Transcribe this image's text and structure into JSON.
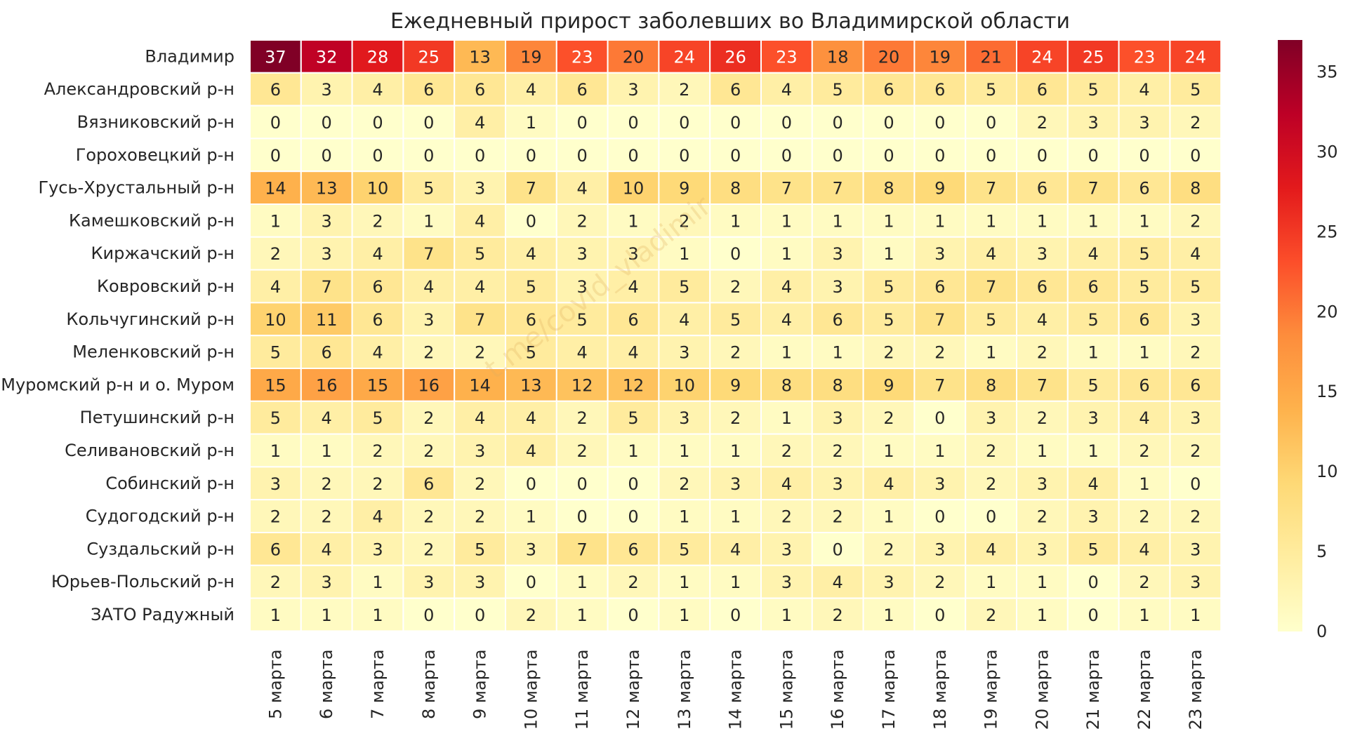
{
  "chart_data": {
    "type": "heatmap",
    "title": "Ежедневный прирост заболевших во Владимирской области",
    "rows": [
      "Владимир",
      "Александровский р-н",
      "Вязниковский р-н",
      "Гороховецкий р-н",
      "Гусь-Хрустальный р-н",
      "Камешковский р-н",
      "Киржачский р-н",
      "Ковровский р-н",
      "Кольчугинский р-н",
      "Меленковский р-н",
      "Муромский р-н и о. Муром",
      "Петушинский р-н",
      "Селивановский р-н",
      "Собинский р-н",
      "Судогодский р-н",
      "Суздальский р-н",
      "Юрьев-Польский р-н",
      "ЗАТО Радужный"
    ],
    "columns": [
      "5 марта",
      "6 марта",
      "7 марта",
      "8 марта",
      "9 марта",
      "10 марта",
      "11 марта",
      "12 марта",
      "13 марта",
      "14 марта",
      "15 марта",
      "16 марта",
      "17 марта",
      "18 марта",
      "19 марта",
      "20 марта",
      "21 марта",
      "22 марта",
      "23 марта"
    ],
    "values": [
      [
        37,
        32,
        28,
        25,
        13,
        19,
        23,
        20,
        24,
        26,
        23,
        18,
        20,
        19,
        21,
        24,
        25,
        23,
        24
      ],
      [
        6,
        3,
        4,
        6,
        6,
        4,
        6,
        3,
        2,
        6,
        4,
        5,
        6,
        6,
        5,
        6,
        5,
        4,
        5
      ],
      [
        0,
        0,
        0,
        0,
        4,
        1,
        0,
        0,
        0,
        0,
        0,
        0,
        0,
        0,
        0,
        2,
        3,
        3,
        2
      ],
      [
        0,
        0,
        0,
        0,
        0,
        0,
        0,
        0,
        0,
        0,
        0,
        0,
        0,
        0,
        0,
        0,
        0,
        0,
        0
      ],
      [
        14,
        13,
        10,
        5,
        3,
        7,
        4,
        10,
        9,
        8,
        7,
        7,
        8,
        9,
        7,
        6,
        7,
        6,
        8
      ],
      [
        1,
        3,
        2,
        1,
        4,
        0,
        2,
        1,
        2,
        1,
        1,
        1,
        1,
        1,
        1,
        1,
        1,
        1,
        2
      ],
      [
        2,
        3,
        4,
        7,
        5,
        4,
        3,
        3,
        1,
        0,
        1,
        3,
        1,
        3,
        4,
        3,
        4,
        5,
        4
      ],
      [
        4,
        7,
        6,
        4,
        4,
        5,
        3,
        4,
        5,
        2,
        4,
        3,
        5,
        6,
        7,
        6,
        6,
        5,
        5
      ],
      [
        10,
        11,
        6,
        3,
        7,
        6,
        5,
        6,
        4,
        5,
        4,
        6,
        5,
        7,
        5,
        4,
        5,
        6,
        3
      ],
      [
        5,
        6,
        4,
        2,
        2,
        5,
        4,
        4,
        3,
        2,
        1,
        1,
        2,
        2,
        1,
        2,
        1,
        1,
        2
      ],
      [
        15,
        16,
        15,
        16,
        14,
        13,
        12,
        12,
        10,
        9,
        8,
        8,
        9,
        7,
        8,
        7,
        5,
        6,
        6
      ],
      [
        5,
        4,
        5,
        2,
        4,
        4,
        2,
        5,
        3,
        2,
        1,
        3,
        2,
        0,
        3,
        2,
        3,
        4,
        3
      ],
      [
        1,
        1,
        2,
        2,
        3,
        4,
        2,
        1,
        1,
        1,
        2,
        2,
        1,
        1,
        2,
        1,
        1,
        2,
        2
      ],
      [
        3,
        2,
        2,
        6,
        2,
        0,
        0,
        0,
        2,
        3,
        4,
        3,
        4,
        3,
        2,
        3,
        4,
        1,
        0
      ],
      [
        2,
        2,
        4,
        2,
        2,
        1,
        0,
        0,
        1,
        1,
        2,
        2,
        1,
        0,
        0,
        2,
        3,
        2,
        2
      ],
      [
        6,
        4,
        3,
        2,
        5,
        3,
        7,
        6,
        5,
        4,
        3,
        0,
        2,
        3,
        4,
        3,
        5,
        4,
        3
      ],
      [
        2,
        3,
        1,
        3,
        3,
        0,
        1,
        2,
        1,
        1,
        3,
        4,
        3,
        2,
        1,
        1,
        0,
        2,
        3
      ],
      [
        1,
        1,
        1,
        0,
        0,
        2,
        1,
        0,
        1,
        0,
        1,
        2,
        1,
        0,
        2,
        1,
        0,
        1,
        1
      ]
    ],
    "colorbar": {
      "min": 0,
      "max": 37,
      "ticks": [
        0,
        5,
        10,
        15,
        20,
        25,
        30,
        35
      ],
      "colormap": "YlOrRd"
    },
    "watermark": "t.me/covid_vladimir"
  }
}
